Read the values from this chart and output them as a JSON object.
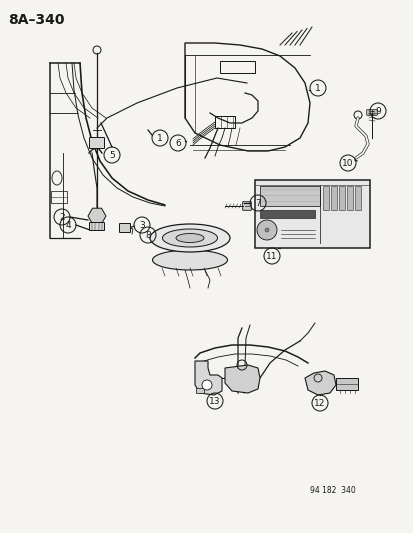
{
  "title": "8A–340",
  "bg_color": "#f5f4f0",
  "line_color": "#1a1a1a",
  "label_color": "#1a1a1a",
  "fig_id": "94 182  340",
  "lw": 0.9,
  "title_fontsize": 10,
  "label_fontsize": 6.5,
  "circle_r": 8
}
